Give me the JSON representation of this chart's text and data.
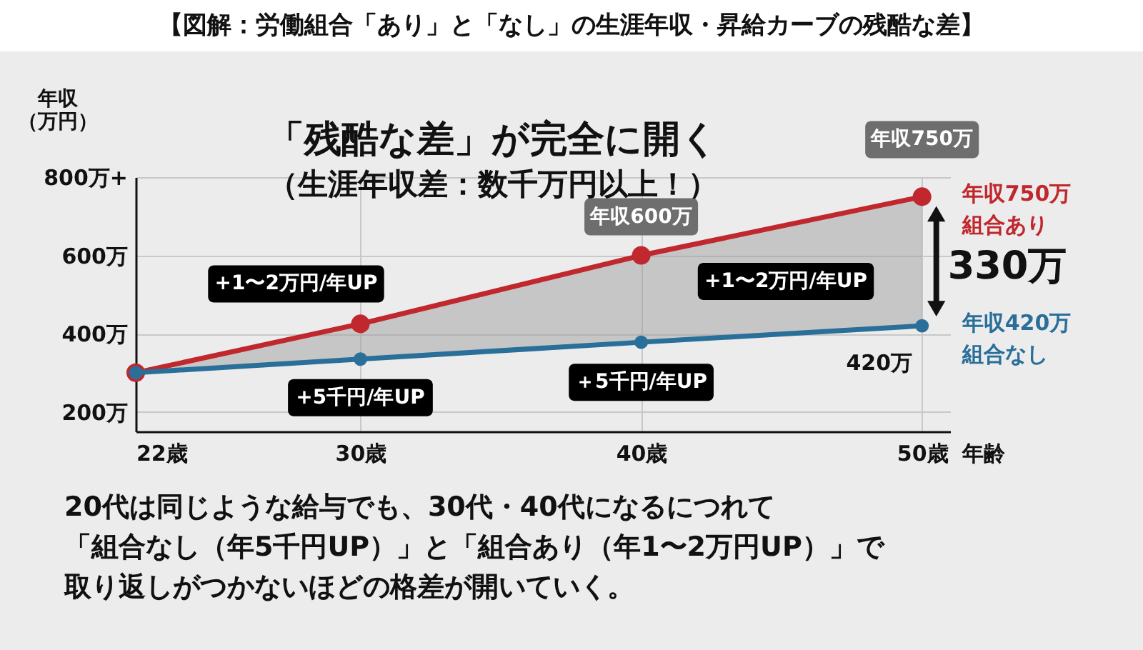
{
  "chart_data": {
    "type": "line",
    "title": "【図解：労働組合「あり」と「なし」の生涯年収・昇給カーブの残酷な差】",
    "xlabel": "年齢",
    "ylabel": "年収（万円）",
    "x": [
      22,
      30,
      40,
      50
    ],
    "series": [
      {
        "name": "組合あり",
        "color": "#c0282d",
        "values": [
          300,
          425,
          600,
          750
        ],
        "lower": [
          300,
          335,
          378,
          420
        ],
        "upper": [
          300,
          425,
          600,
          750
        ]
      },
      {
        "name": "組合なし",
        "color": "#2a6f9a",
        "values": [
          300,
          335,
          378,
          420
        ]
      }
    ],
    "xlim": [
      22,
      51
    ],
    "xticks": [
      {
        "value": 22,
        "label": "22歳"
      },
      {
        "value": 30,
        "label": "30歳"
      },
      {
        "value": 40,
        "label": "40歳"
      },
      {
        "value": 50,
        "label": "50歳"
      }
    ],
    "ylim": [
      150,
      800
    ],
    "yticks": [
      {
        "value": 200,
        "label": "200万"
      },
      {
        "value": 400,
        "label": "400万"
      },
      {
        "value": 600,
        "label": "600万"
      },
      {
        "value": 800,
        "label": "800万+"
      }
    ],
    "grid": true,
    "legend": false,
    "marker": "circle",
    "line_style": "solid",
    "annotations": [
      "「残酷な差」が完全に開く",
      "（生涯年収差：数千万円以上！）",
      {
        "text": "+1〜2万円/年UP",
        "x": 30,
        "y": 425
      },
      {
        "text": "+5千円/年UP",
        "x": 30,
        "y": 335
      },
      {
        "text": "＋5千円/年UP",
        "x": 40,
        "y": 378
      },
      "+1〜2万円/年UP",
      {
        "text": "年収600万",
        "x": 40,
        "y": 600
      },
      {
        "text": "年収750万",
        "x": 50,
        "y": 750
      },
      "330万",
      {
        "text": "420万",
        "x": 50,
        "y": 420
      },
      {
        "text": "年収750万",
        "x": 50,
        "y": 750
      },
      {
        "text": "年収420万",
        "x": 50,
        "y": 420
      },
      "20代は同じような給与でも、30代・40代になるにつれて",
      "「組合なし（年5千円UP）」と「組合あり（年1〜2万円UP）」で",
      "取り返しがつかないほどの格差が開いていく。"
    ]
  }
}
